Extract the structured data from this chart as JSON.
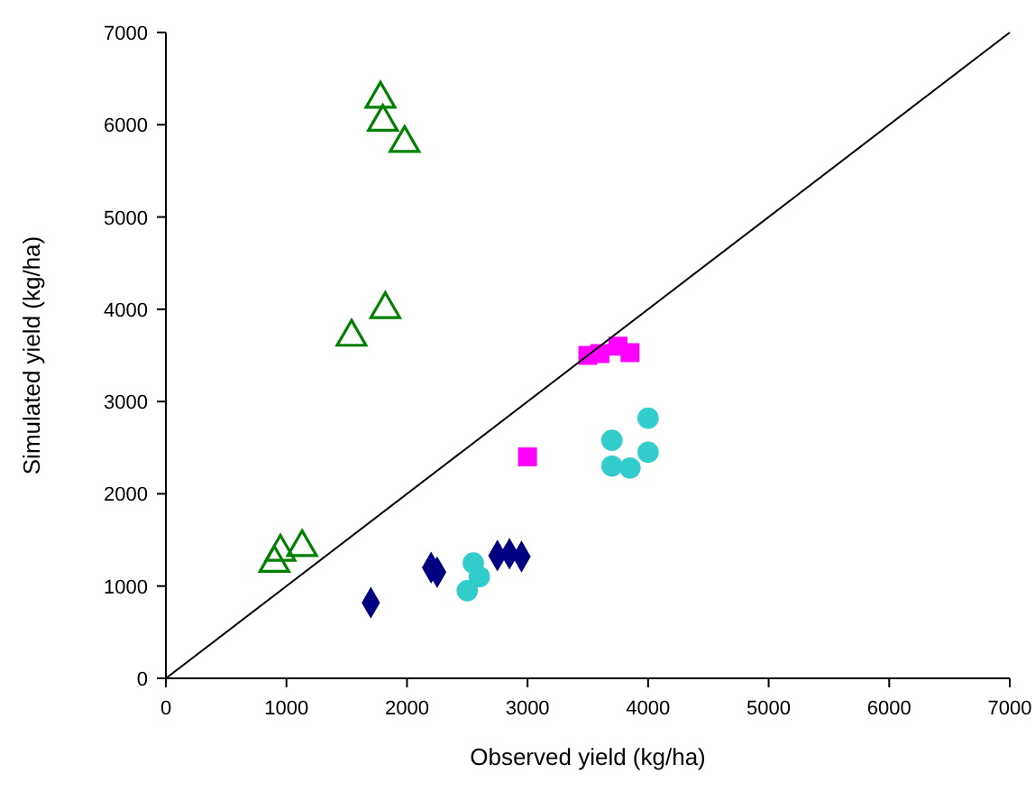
{
  "chart_data": {
    "type": "scatter",
    "xlabel": "Observed yield (kg/ha)",
    "ylabel": "Simulated yield (kg/ha)",
    "xlim": [
      0,
      7000
    ],
    "ylim": [
      0,
      7000
    ],
    "xticks": [
      0,
      1000,
      2000,
      3000,
      4000,
      5000,
      6000,
      7000
    ],
    "yticks": [
      0,
      1000,
      2000,
      3000,
      4000,
      5000,
      6000,
      7000
    ],
    "series": [
      {
        "marker": "triangle",
        "color": "#008000",
        "x": [
          1780,
          1800,
          1980,
          1540,
          1820,
          900,
          950,
          1130
        ],
        "values": [
          6280,
          6030,
          5800,
          3700,
          4000,
          1250,
          1370,
          1420
        ]
      },
      {
        "marker": "square",
        "color": "#ff00ff",
        "x": [
          3500,
          3600,
          3750,
          3850,
          3000
        ],
        "values": [
          3500,
          3520,
          3600,
          3530,
          2400
        ]
      },
      {
        "marker": "diamond",
        "color": "#000080",
        "x": [
          1700,
          2200,
          2250,
          2750,
          2850,
          2950
        ],
        "values": [
          820,
          1200,
          1150,
          1330,
          1350,
          1320
        ]
      },
      {
        "marker": "circle",
        "color": "#33cccc",
        "x": [
          2550,
          2500,
          2600,
          3700,
          3700,
          3850,
          4000,
          4000
        ],
        "values": [
          1250,
          950,
          1100,
          2580,
          2300,
          2280,
          2820,
          2450
        ]
      },
      {
        "type": "line",
        "marker": "none",
        "color": "#000000",
        "x": [
          0,
          7000
        ],
        "values": [
          0,
          7000
        ]
      }
    ]
  }
}
